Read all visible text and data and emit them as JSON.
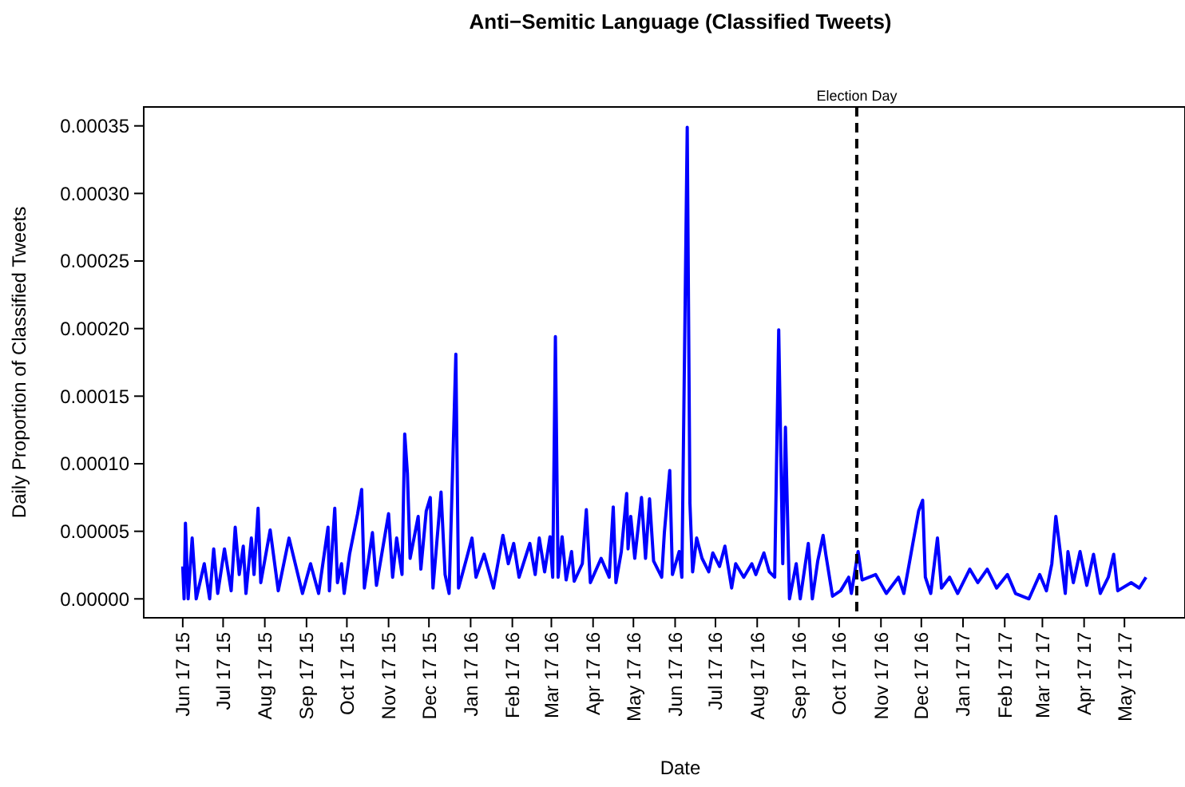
{
  "chart_data": {
    "type": "line",
    "title": "Anti−Semitic Language (Classified Tweets)",
    "xlabel": "Date",
    "ylabel": "Daily Proportion of Classified Tweets",
    "x": [
      "2015-06-17",
      "2015-06-18",
      "2015-06-19",
      "2015-06-21",
      "2015-06-24",
      "2015-06-27",
      "2015-07-03",
      "2015-07-07",
      "2015-07-10",
      "2015-07-13",
      "2015-07-18",
      "2015-07-23",
      "2015-07-26",
      "2015-07-29",
      "2015-08-01",
      "2015-08-03",
      "2015-08-07",
      "2015-08-09",
      "2015-08-12",
      "2015-08-14",
      "2015-08-21",
      "2015-08-27",
      "2015-09-04",
      "2015-09-14",
      "2015-09-20",
      "2015-09-26",
      "2015-10-03",
      "2015-10-04",
      "2015-10-08",
      "2015-10-10",
      "2015-10-13",
      "2015-10-15",
      "2015-10-19",
      "2015-10-25",
      "2015-10-28",
      "2015-10-30",
      "2015-11-05",
      "2015-11-08",
      "2015-11-17",
      "2015-11-20",
      "2015-11-23",
      "2015-11-27",
      "2015-11-29",
      "2015-12-01",
      "2015-12-03",
      "2015-12-09",
      "2015-12-11",
      "2015-12-15",
      "2015-12-18",
      "2015-12-20",
      "2015-12-26",
      "2015-12-29",
      "2016-01-01",
      "2016-01-06",
      "2016-01-08",
      "2016-01-14",
      "2016-01-18",
      "2016-01-21",
      "2016-01-27",
      "2016-02-03",
      "2016-02-10",
      "2016-02-14",
      "2016-02-18",
      "2016-02-22",
      "2016-03-01",
      "2016-03-05",
      "2016-03-08",
      "2016-03-12",
      "2016-03-16",
      "2016-03-18",
      "2016-03-20",
      "2016-03-22",
      "2016-03-25",
      "2016-03-28",
      "2016-04-01",
      "2016-04-03",
      "2016-04-09",
      "2016-04-12",
      "2016-04-15",
      "2016-04-23",
      "2016-04-29",
      "2016-05-02",
      "2016-05-04",
      "2016-05-08",
      "2016-05-12",
      "2016-05-13",
      "2016-05-15",
      "2016-05-18",
      "2016-05-23",
      "2016-05-26",
      "2016-05-29",
      "2016-06-01",
      "2016-06-07",
      "2016-06-09",
      "2016-06-13",
      "2016-06-15",
      "2016-06-20",
      "2016-06-22",
      "2016-06-26",
      "2016-06-28",
      "2016-06-30",
      "2016-07-03",
      "2016-07-07",
      "2016-07-12",
      "2016-07-15",
      "2016-07-20",
      "2016-07-24",
      "2016-07-29",
      "2016-08-01",
      "2016-08-07",
      "2016-08-13",
      "2016-08-16",
      "2016-08-22",
      "2016-08-26",
      "2016-08-30",
      "2016-09-02",
      "2016-09-05",
      "2016-09-07",
      "2016-09-10",
      "2016-09-15",
      "2016-09-18",
      "2016-09-24",
      "2016-09-27",
      "2016-10-01",
      "2016-10-05",
      "2016-10-07",
      "2016-10-12",
      "2016-10-18",
      "2016-10-24",
      "2016-10-26",
      "2016-10-31",
      "2016-11-03",
      "2016-11-13",
      "2016-11-21",
      "2016-11-30",
      "2016-12-04",
      "2016-12-08",
      "2016-12-15",
      "2016-12-18",
      "2016-12-20",
      "2016-12-24",
      "2016-12-29",
      "2017-01-01",
      "2017-01-07",
      "2017-01-13",
      "2017-01-22",
      "2017-01-28",
      "2017-02-04",
      "2017-02-11",
      "2017-02-19",
      "2017-02-25",
      "2017-03-07",
      "2017-03-15",
      "2017-03-20",
      "2017-03-24",
      "2017-03-27",
      "2017-03-29",
      "2017-04-03",
      "2017-04-05",
      "2017-04-09",
      "2017-04-14",
      "2017-04-19",
      "2017-04-24",
      "2017-04-29",
      "2017-05-05",
      "2017-05-09",
      "2017-05-12",
      "2017-05-22",
      "2017-05-28",
      "2017-06-02"
    ],
    "series": [
      {
        "color": "#0000ff",
        "values": [
          2.4e-05,
          0,
          5.6e-05,
          0,
          4.5e-05,
          0,
          2.6e-05,
          0,
          3.7e-05,
          4e-06,
          3.7e-05,
          6e-06,
          5.3e-05,
          1.8e-05,
          3.9e-05,
          4e-06,
          4.5e-05,
          1.8e-05,
          6.7e-05,
          1.2e-05,
          5.1e-05,
          6e-06,
          4.5e-05,
          4e-06,
          2.6e-05,
          4e-06,
          5.3e-05,
          6e-06,
          6.7e-05,
          1.2e-05,
          2.6e-05,
          4e-06,
          3.3e-05,
          6.3e-05,
          8.1e-05,
          8e-06,
          4.9e-05,
          1e-05,
          6.3e-05,
          1.6e-05,
          4.5e-05,
          1.8e-05,
          0.000122,
          9.3e-05,
          3e-05,
          6.1e-05,
          2.2e-05,
          6.5e-05,
          7.5e-05,
          8e-06,
          7.9e-05,
          1.8e-05,
          4e-06,
          0.000181,
          8e-06,
          3e-05,
          4.5e-05,
          1.6e-05,
          3.3e-05,
          8e-06,
          4.7e-05,
          2.6e-05,
          4.1e-05,
          1.6e-05,
          4.1e-05,
          1.8e-05,
          4.5e-05,
          2e-05,
          4.6e-05,
          1.6e-05,
          0.000194,
          1.6e-05,
          4.6e-05,
          1.4e-05,
          3.5e-05,
          1.3e-05,
          2.6e-05,
          6.6e-05,
          1.2e-05,
          3e-05,
          1.6e-05,
          6.8e-05,
          1.2e-05,
          3.5e-05,
          7.8e-05,
          3.7e-05,
          6.1e-05,
          3e-05,
          7.5e-05,
          3e-05,
          7.4e-05,
          2.8e-05,
          1.6e-05,
          4.9e-05,
          9.5e-05,
          1.8e-05,
          3.5e-05,
          1.6e-05,
          0.000349,
          7.1e-05,
          2e-05,
          4.5e-05,
          3e-05,
          2e-05,
          3.4e-05,
          2.4e-05,
          3.9e-05,
          8e-06,
          2.6e-05,
          1.6e-05,
          2.6e-05,
          1.8e-05,
          3.4e-05,
          2e-05,
          1.6e-05,
          0.000199,
          2.6e-05,
          0.000127,
          0,
          2.6e-05,
          0,
          4.1e-05,
          0,
          2.8e-05,
          4.7e-05,
          3.3e-05,
          2e-06,
          6e-06,
          1.6e-05,
          4e-06,
          3.5e-05,
          1.4e-05,
          1.8e-05,
          4e-06,
          1.6e-05,
          4e-06,
          2.6e-05,
          6.5e-05,
          7.3e-05,
          1.6e-05,
          4e-06,
          4.5e-05,
          8e-06,
          1.6e-05,
          4e-06,
          2.2e-05,
          1.2e-05,
          2.2e-05,
          8e-06,
          1.8e-05,
          4e-06,
          0,
          1.8e-05,
          6e-06,
          2.6e-05,
          6.1e-05,
          4.5e-05,
          4e-06,
          3.5e-05,
          1.2e-05,
          3.5e-05,
          1e-05,
          3.3e-05,
          4e-06,
          1.6e-05,
          3.3e-05,
          6e-06,
          1.2e-05,
          8e-06,
          1.6e-05
        ]
      }
    ],
    "xlim": [
      "2015-05-19",
      "2017-07-01"
    ],
    "xticks": [
      {
        "value": "2015-06-17",
        "label": "Jun 17 15"
      },
      {
        "value": "2015-07-17",
        "label": "Jul 17 15"
      },
      {
        "value": "2015-08-17",
        "label": "Aug 17 15"
      },
      {
        "value": "2015-09-17",
        "label": "Sep 17 15"
      },
      {
        "value": "2015-10-17",
        "label": "Oct 17 15"
      },
      {
        "value": "2015-11-17",
        "label": "Nov 17 15"
      },
      {
        "value": "2015-12-17",
        "label": "Dec 17 15"
      },
      {
        "value": "2016-01-17",
        "label": "Jan 17 16"
      },
      {
        "value": "2016-02-17",
        "label": "Feb 17 16"
      },
      {
        "value": "2016-03-17",
        "label": "Mar 17 16"
      },
      {
        "value": "2016-04-17",
        "label": "Apr 17 16"
      },
      {
        "value": "2016-05-17",
        "label": "May 17 16"
      },
      {
        "value": "2016-06-17",
        "label": "Jun 17 16"
      },
      {
        "value": "2016-07-17",
        "label": "Jul 17 16"
      },
      {
        "value": "2016-08-17",
        "label": "Aug 17 16"
      },
      {
        "value": "2016-09-17",
        "label": "Sep 17 16"
      },
      {
        "value": "2016-10-17",
        "label": "Oct 17 16"
      },
      {
        "value": "2016-11-17",
        "label": "Nov 17 16"
      },
      {
        "value": "2016-12-17",
        "label": "Dec 17 16"
      },
      {
        "value": "2017-01-17",
        "label": "Jan 17 17"
      },
      {
        "value": "2017-02-17",
        "label": "Feb 17 17"
      },
      {
        "value": "2017-03-17",
        "label": "Mar 17 17"
      },
      {
        "value": "2017-04-17",
        "label": "Apr 17 17"
      },
      {
        "value": "2017-05-17",
        "label": "May 17 17"
      }
    ],
    "ylim": [
      -1.4e-05,
      0.000364
    ],
    "yticks": [
      {
        "value": 0,
        "label": "0.00000"
      },
      {
        "value": 5e-05,
        "label": "0.00005"
      },
      {
        "value": 0.0001,
        "label": "0.00010"
      },
      {
        "value": 0.00015,
        "label": "0.00015"
      },
      {
        "value": 0.0002,
        "label": "0.00020"
      },
      {
        "value": 0.00025,
        "label": "0.00025"
      },
      {
        "value": 0.0003,
        "label": "0.00030"
      },
      {
        "value": 0.00035,
        "label": "0.00035"
      }
    ],
    "ref_lines": [
      {
        "axis": "x",
        "value": "2016-10-30",
        "label": "Election Day",
        "color": "#000000",
        "line_style": "dashed"
      }
    ],
    "grid": false
  }
}
